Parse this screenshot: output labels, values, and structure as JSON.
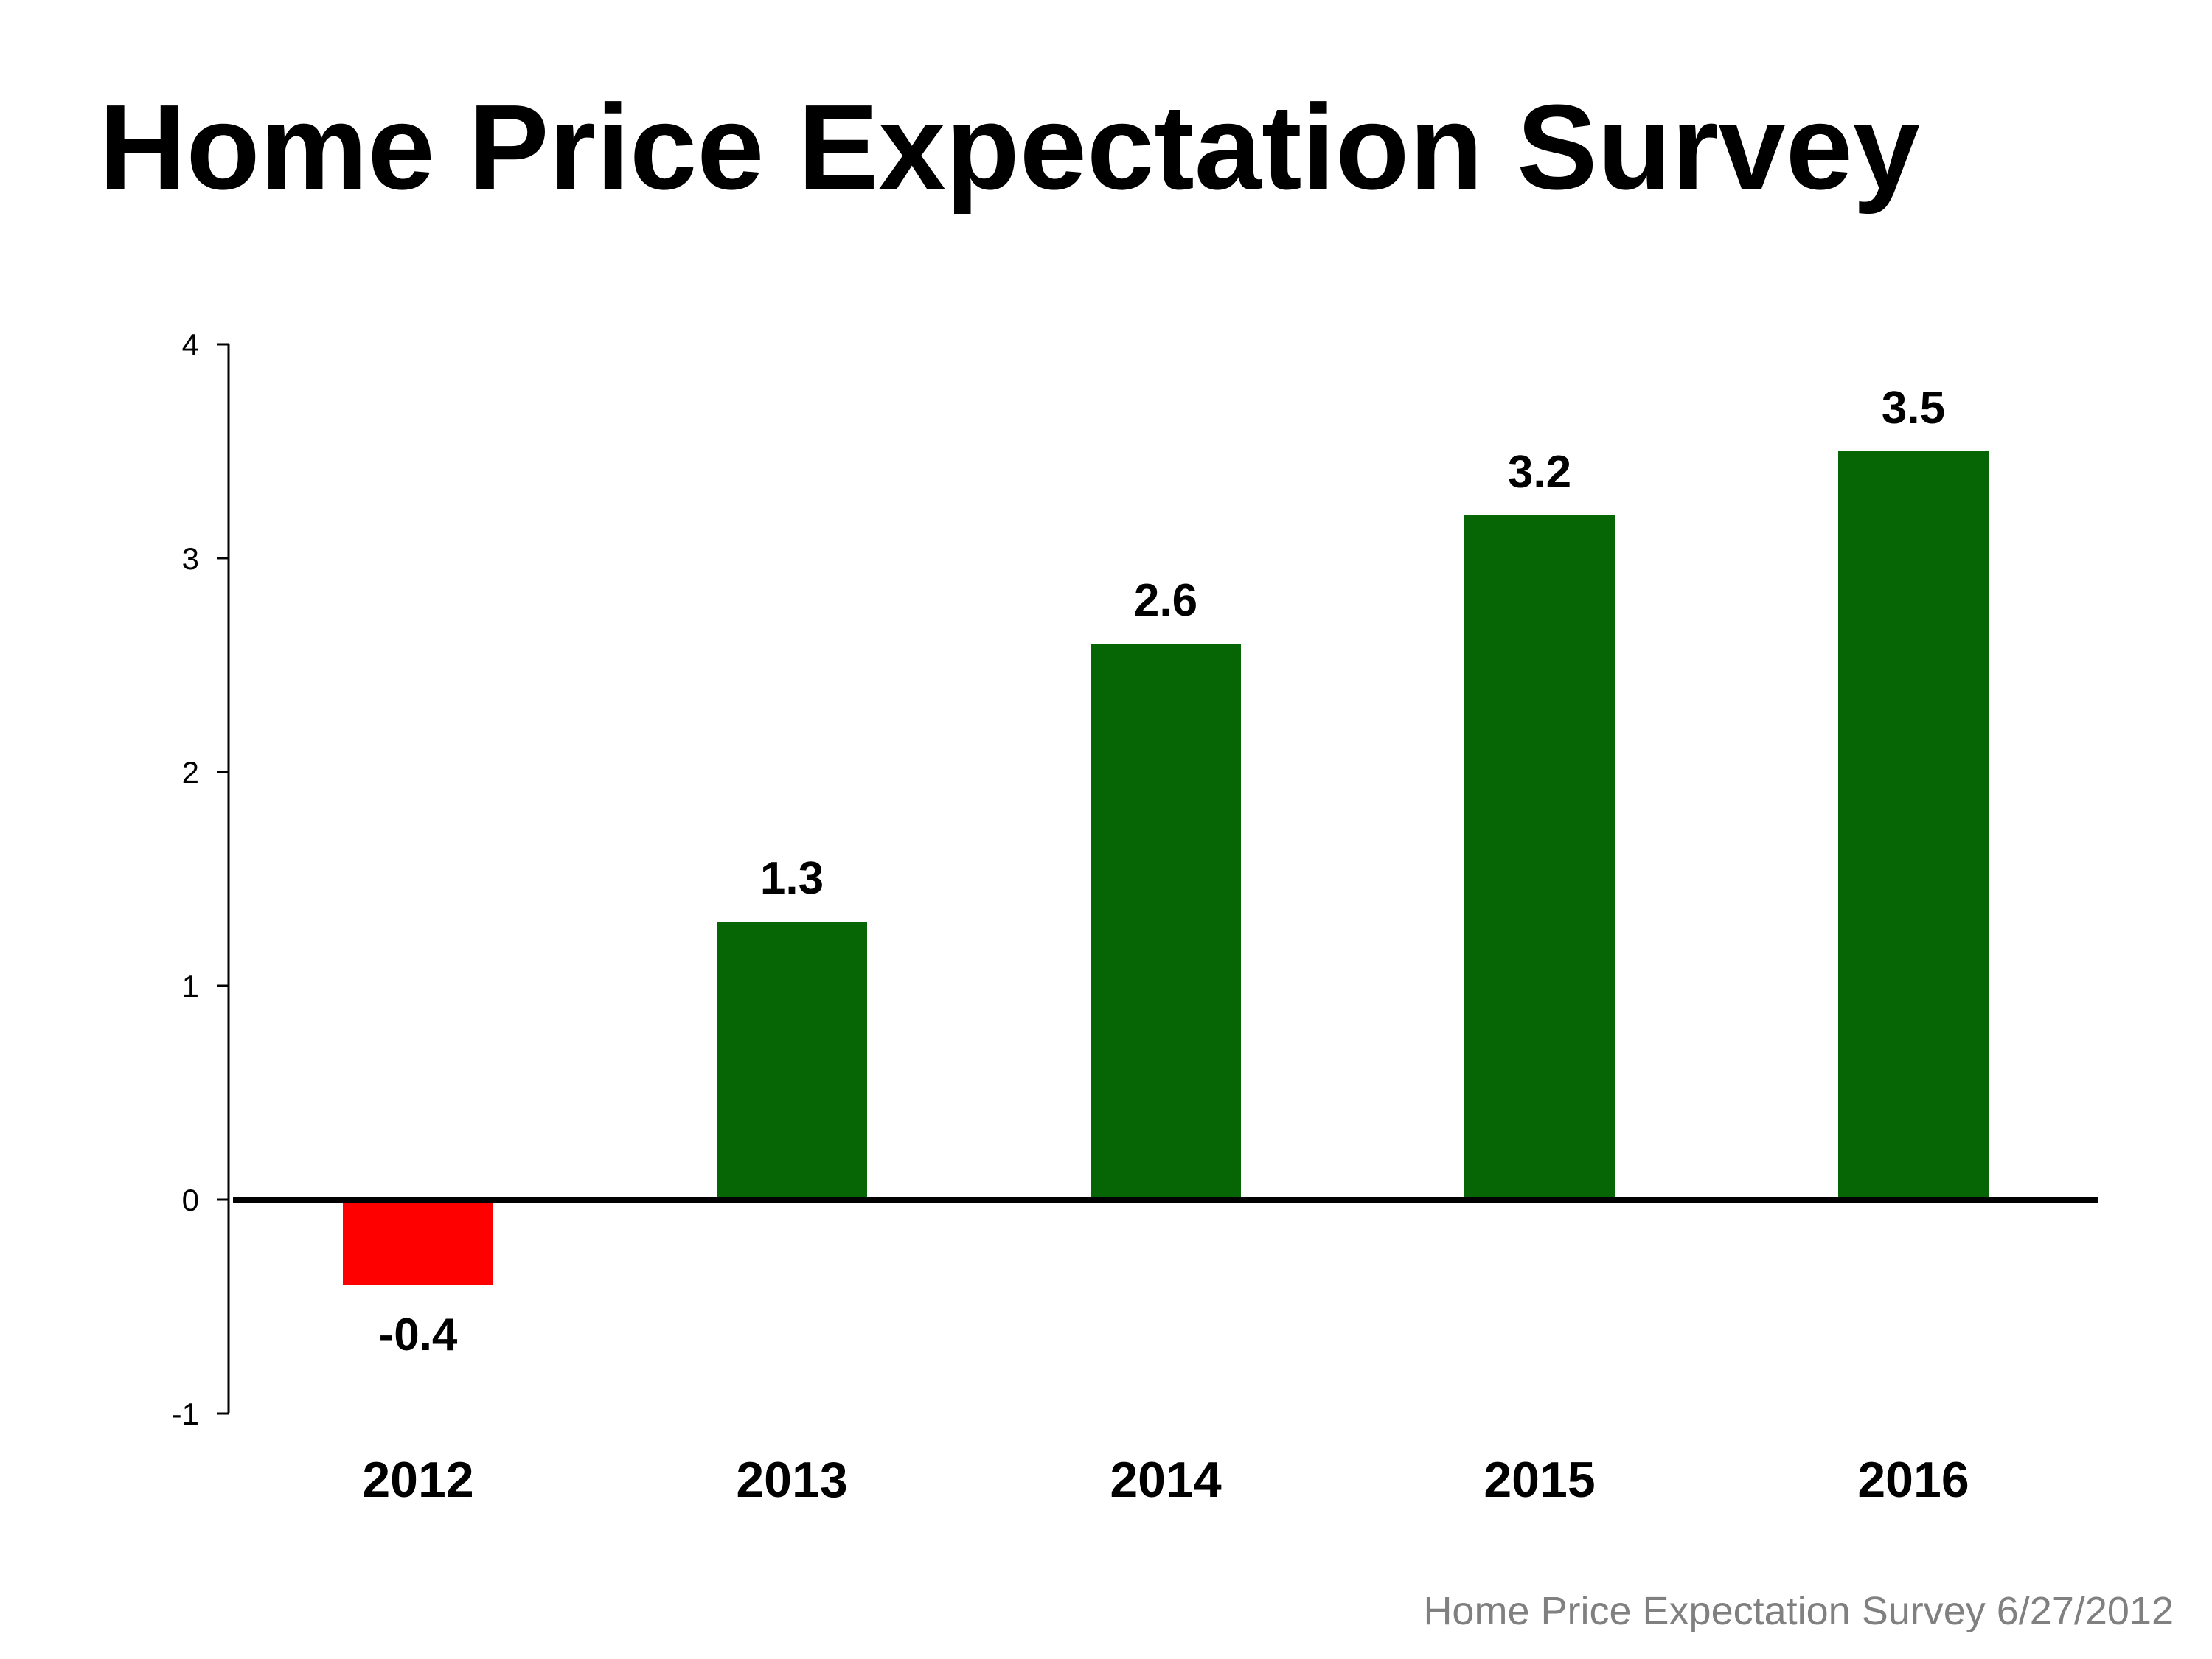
{
  "title": "Home Price Expectation Survey",
  "footer": "Home Price Expectation Survey 6/27/2012",
  "colors": {
    "positive": "#066606",
    "negative": "#ff0000",
    "axis": "#000000",
    "text": "#000000",
    "footer": "#808080"
  },
  "chart_data": {
    "type": "bar",
    "categories": [
      "2012",
      "2013",
      "2014",
      "2015",
      "2016"
    ],
    "values": [
      -0.4,
      1.3,
      2.6,
      3.2,
      3.5
    ],
    "data_labels": [
      "-0.4",
      "1.3",
      "2.6",
      "3.2",
      "3.5"
    ],
    "yticks": [
      "-1",
      "0",
      "1",
      "2",
      "3",
      "4"
    ],
    "ylim": [
      -1,
      4
    ],
    "grid": false,
    "legend": "none"
  }
}
